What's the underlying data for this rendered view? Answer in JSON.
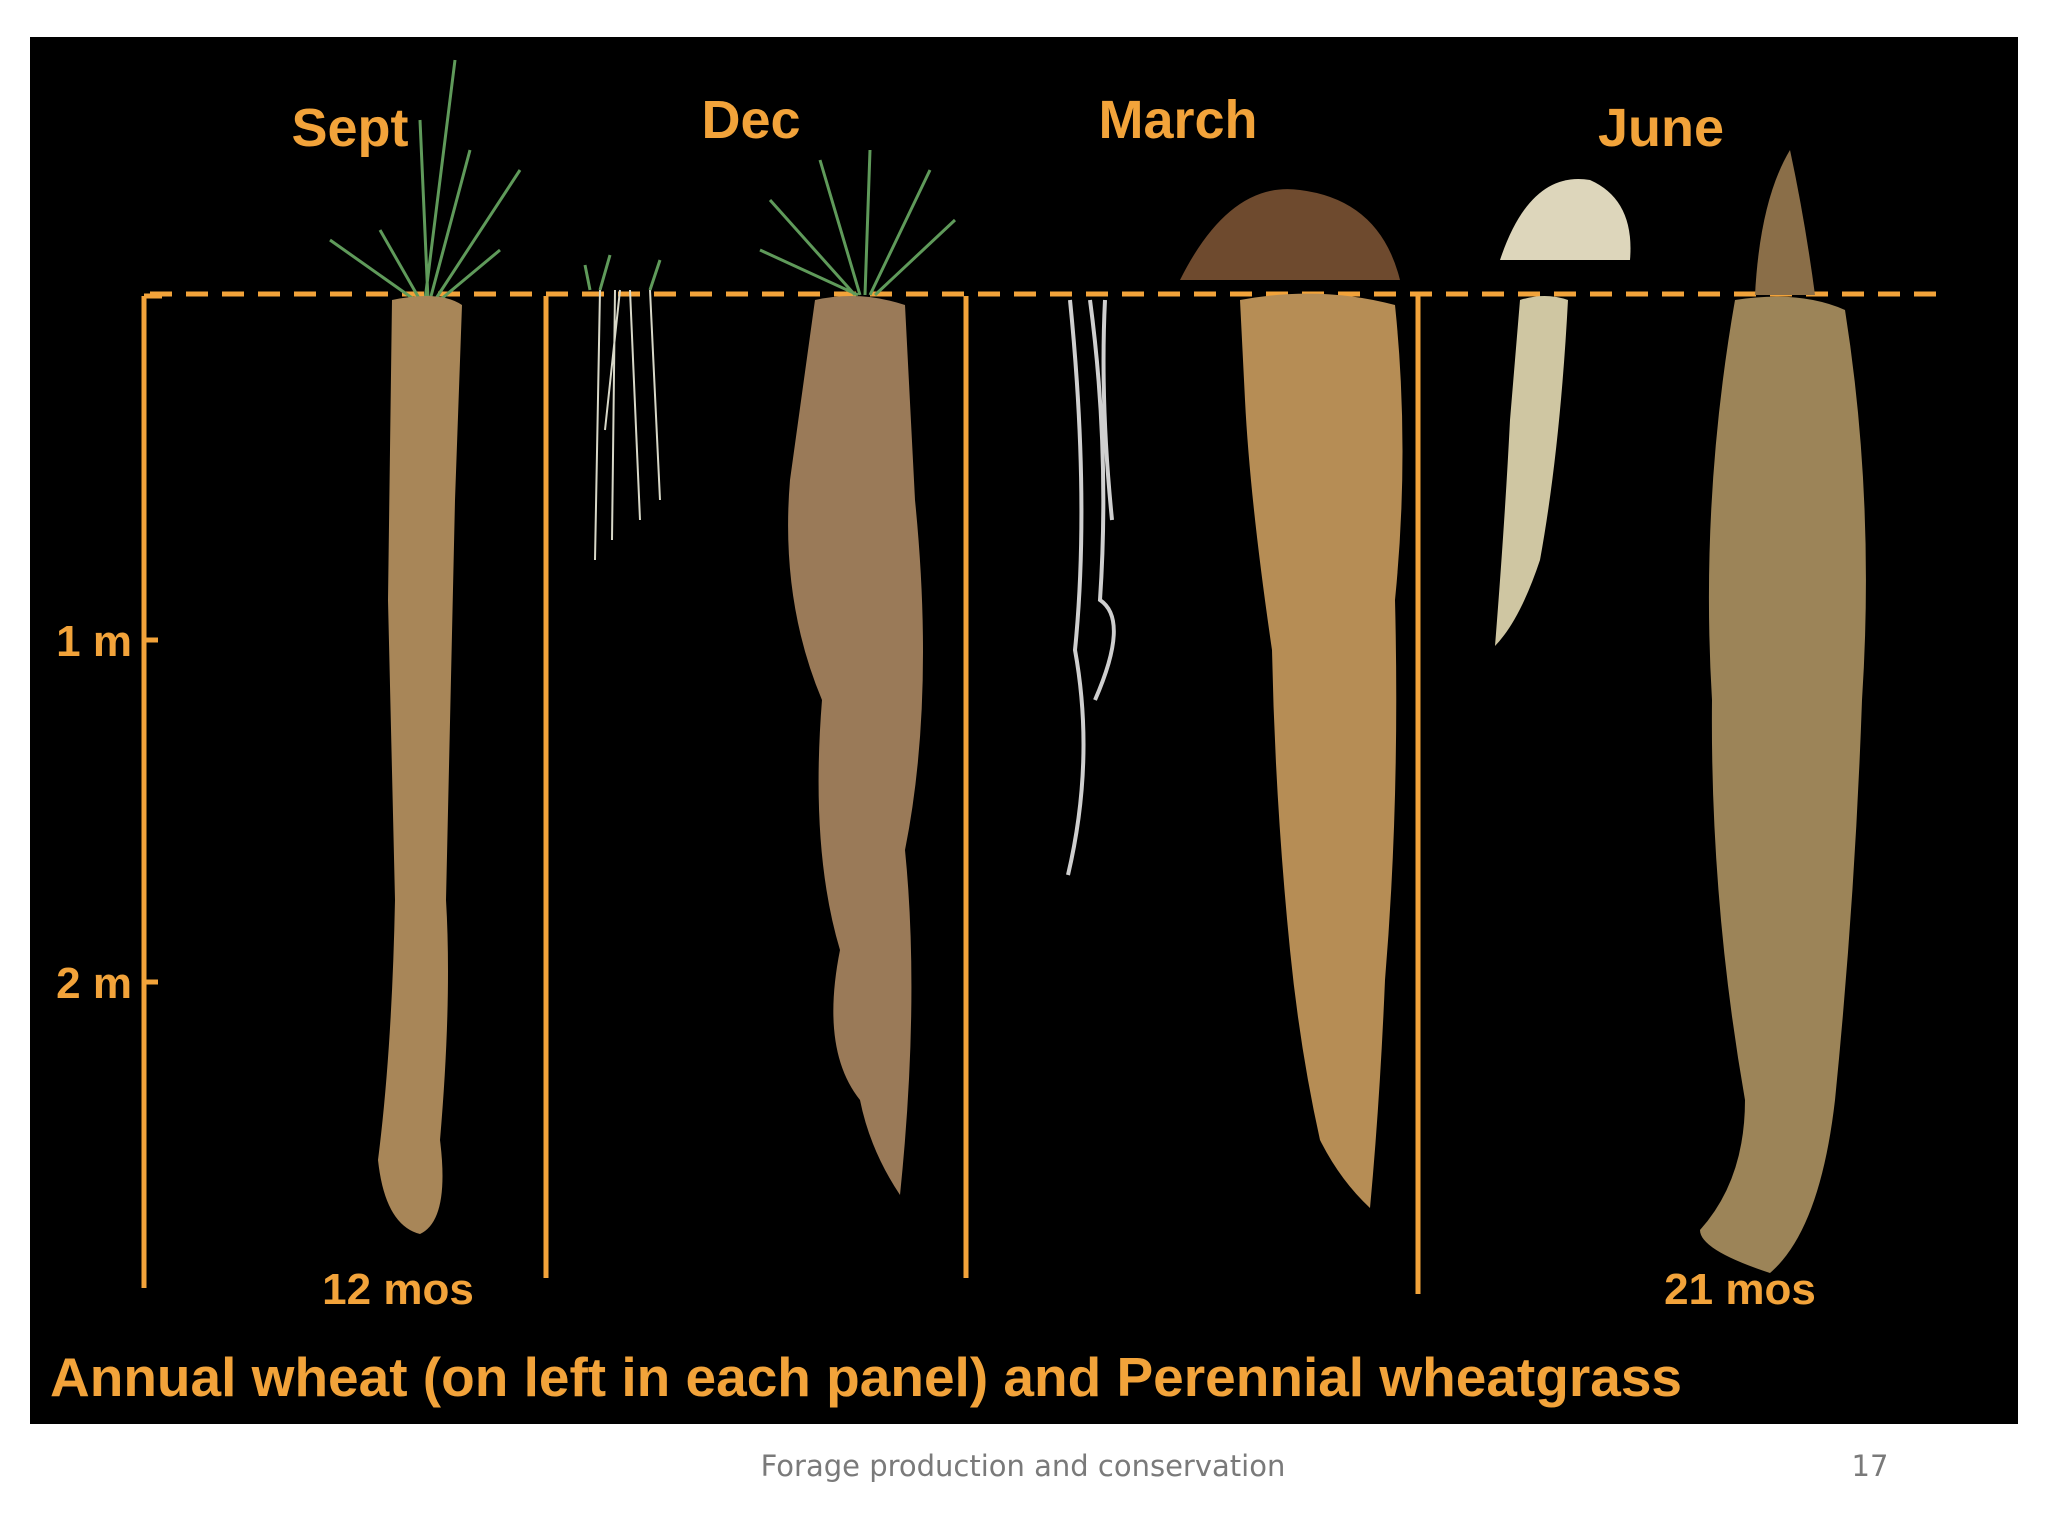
{
  "slide": {
    "panels": [
      {
        "label": "Sept"
      },
      {
        "label": "Dec"
      },
      {
        "label": "March"
      },
      {
        "label": "June"
      }
    ],
    "depth_labels": [
      "1 m",
      "2 m"
    ],
    "durations": [
      "12 mos",
      "21 mos"
    ],
    "caption": "Annual wheat (on left in each panel) and Perennial wheatgrass",
    "footer": "Forage production and conservation",
    "page_number": "17"
  }
}
